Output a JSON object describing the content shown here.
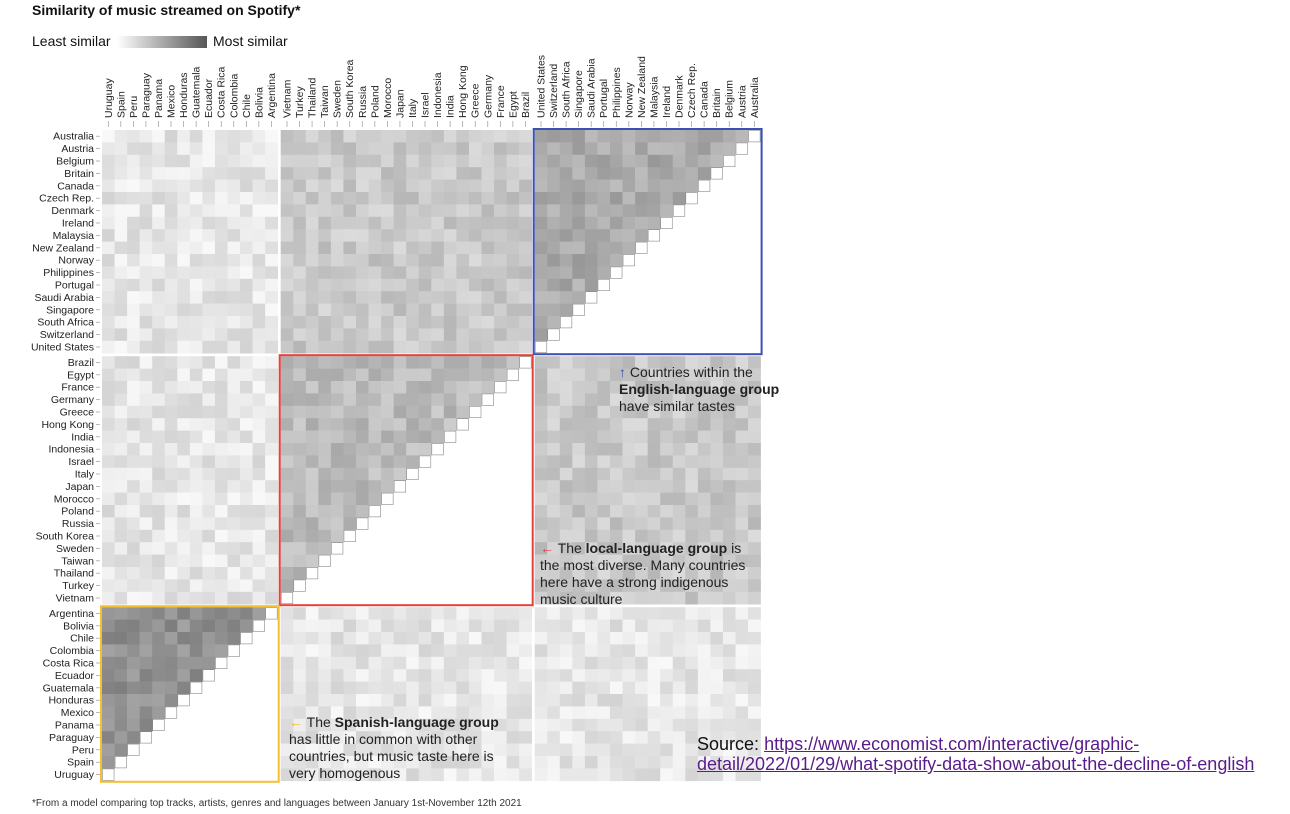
{
  "title": "Similarity of music streamed on Spotify*",
  "legend": {
    "least": "Least similar",
    "most": "Most similar"
  },
  "chart_data": {
    "type": "heatmap",
    "title": "Similarity of music streamed on Spotify*",
    "columns": [
      "Uruguay",
      "Spain",
      "Peru",
      "Paraguay",
      "Panama",
      "Mexico",
      "Honduras",
      "Guatemala",
      "Ecuador",
      "Costa Rica",
      "Colombia",
      "Chile",
      "Bolivia",
      "Argentina",
      "Vietnam",
      "Turkey",
      "Thailand",
      "Taiwan",
      "Sweden",
      "South Korea",
      "Russia",
      "Poland",
      "Morocco",
      "Japan",
      "Italy",
      "Israel",
      "Indonesia",
      "India",
      "Hong Kong",
      "Greece",
      "Germany",
      "France",
      "Egypt",
      "Brazil",
      "United States",
      "Switzerland",
      "South Africa",
      "Singapore",
      "Saudi Arabia",
      "Portugal",
      "Philippines",
      "Norway",
      "New Zealand",
      "Malaysia",
      "Ireland",
      "Denmark",
      "Czech Rep.",
      "Canada",
      "Britain",
      "Belgium",
      "Austria",
      "Australia"
    ],
    "rows": [
      "Australia",
      "Austria",
      "Belgium",
      "Britain",
      "Canada",
      "Czech Rep.",
      "Denmark",
      "Ireland",
      "Malaysia",
      "New Zealand",
      "Norway",
      "Philippines",
      "Portugal",
      "Saudi Arabia",
      "Singapore",
      "South Africa",
      "Switzerland",
      "United States",
      "Brazil",
      "Egypt",
      "France",
      "Germany",
      "Greece",
      "Hong Kong",
      "India",
      "Indonesia",
      "Israel",
      "Italy",
      "Japan",
      "Morocco",
      "Poland",
      "Russia",
      "South Korea",
      "Sweden",
      "Taiwan",
      "Thailand",
      "Turkey",
      "Vietnam",
      "Argentina",
      "Bolivia",
      "Chile",
      "Colombia",
      "Costa Rica",
      "Ecuador",
      "Guatemala",
      "Honduras",
      "Mexico",
      "Panama",
      "Paraguay",
      "Peru",
      "Spain",
      "Uruguay"
    ],
    "groups": [
      {
        "name": "English-language group",
        "color": "#3b50b5",
        "size": 18
      },
      {
        "name": "local-language group",
        "color": "#e3413a",
        "size": 20
      },
      {
        "name": "Spanish-language group",
        "color": "#f5bf2e",
        "size": 14
      }
    ],
    "scale": {
      "low": "#ffffff",
      "high": "#555555"
    },
    "values_note": "values approximate, read from the cell shading as relative similarity 0-1",
    "value_levels": {
      "english_within": 0.5,
      "local_within": 0.4,
      "spanish_within": 0.65,
      "english_vs_local": 0.32,
      "spanish_vs_other": 0.15
    }
  },
  "annotations": {
    "english": {
      "arrow": "↑",
      "pre": " Countries within the ",
      "bold": "English-language group",
      "post": " have similar tastes",
      "color": "#3b50b5"
    },
    "local": {
      "arrow": "←",
      "pre": " The ",
      "bold": "local-language group",
      "post": " is the most diverse. Many countries here have a strong indigenous music culture",
      "color": "#e3413a"
    },
    "spanish": {
      "arrow": "←",
      "pre": " The ",
      "bold": "Spanish-language group",
      "post": " has little in common with other countries, but music taste here is very homogenous",
      "color": "#f5bf2e"
    }
  },
  "footnote": "*From a model comparing top tracks, artists, genres and languages between January 1st-November 12th 2021",
  "source": {
    "label": "Source:",
    "url": "https://www.economist.com/interactive/graphic-detail/2022/01/29/what-spotify-data-show-about-the-decline-of-english"
  }
}
